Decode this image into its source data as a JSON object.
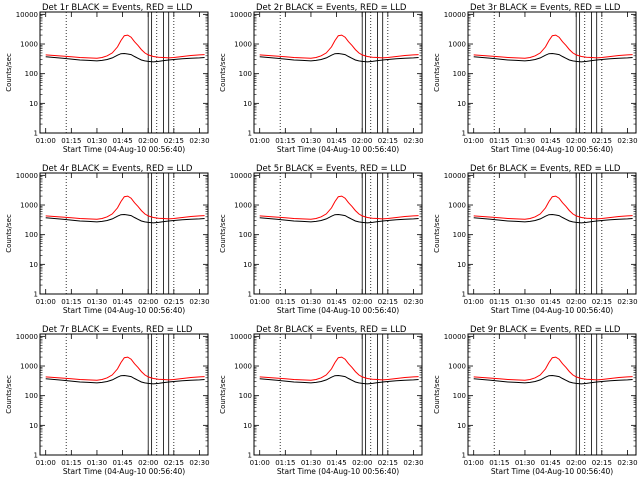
{
  "colors": {
    "events": "#000000",
    "lld": "#ff0000",
    "axes": "#000000",
    "background": "#ffffff"
  },
  "shared": {
    "ylabel": "Counts/sec",
    "xlabel": "Start Time (04-Aug-10 00:56:40)",
    "x_tick_labels": [
      "01:00",
      "01:15",
      "01:30",
      "01:45",
      "02:00",
      "02:15",
      "02:30"
    ],
    "y_tick_labels": [
      "1",
      "10",
      "100",
      "1000",
      "10000"
    ],
    "xlim": [
      "00:56:40",
      "02:35:00"
    ],
    "ylim": [
      1,
      12000
    ],
    "yscale": "log",
    "dotted_vertical_lines": [
      "01:12",
      "02:05",
      "02:15"
    ],
    "solid_vertical_lines": [
      "02:00",
      "02:02",
      "02:09",
      "02:12"
    ],
    "series": [
      {
        "name": "BLACK = Events",
        "color": "#000000",
        "x": [
          "01:00",
          "01:05",
          "01:10",
          "01:15",
          "01:20",
          "01:25",
          "01:30",
          "01:33",
          "01:36",
          "01:39",
          "01:42",
          "01:44",
          "01:46",
          "01:48",
          "01:50",
          "01:52",
          "01:54",
          "01:56",
          "01:58",
          "02:00",
          "02:03",
          "02:06",
          "02:09",
          "02:12",
          "02:15",
          "02:20",
          "02:25",
          "02:30",
          "02:33"
        ],
        "y": [
          370,
          350,
          330,
          310,
          290,
          280,
          270,
          280,
          300,
          340,
          420,
          470,
          480,
          460,
          440,
          380,
          330,
          290,
          270,
          260,
          250,
          260,
          275,
          290,
          300,
          320,
          330,
          340,
          350
        ]
      },
      {
        "name": "RED = LLD",
        "color": "#ff0000",
        "x": [
          "01:00",
          "01:05",
          "01:10",
          "01:15",
          "01:20",
          "01:25",
          "01:30",
          "01:33",
          "01:36",
          "01:39",
          "01:42",
          "01:44",
          "01:46",
          "01:48",
          "01:50",
          "01:52",
          "01:54",
          "01:56",
          "01:58",
          "02:00",
          "02:03",
          "02:06",
          "02:09",
          "02:12",
          "02:15",
          "02:20",
          "02:25",
          "02:30",
          "02:33"
        ],
        "y": [
          430,
          410,
          390,
          370,
          350,
          340,
          330,
          350,
          400,
          500,
          800,
          1300,
          1900,
          2000,
          1700,
          1200,
          900,
          650,
          500,
          430,
          380,
          360,
          350,
          340,
          350,
          380,
          410,
          430,
          440
        ]
      }
    ]
  },
  "chart_data": [
    {
      "type": "line",
      "title": "Det 1r BLACK = Events, RED = LLD",
      "xlabel": "Start Time (04-Aug-10 00:56:40)",
      "ylabel": "Counts/sec",
      "yscale": "log"
    },
    {
      "type": "line",
      "title": "Det 2r BLACK = Events, RED = LLD",
      "xlabel": "Start Time (04-Aug-10 00:56:40)",
      "ylabel": "Counts/sec",
      "yscale": "log"
    },
    {
      "type": "line",
      "title": "Det 3r BLACK = Events, RED = LLD",
      "xlabel": "Start Time (04-Aug-10 00:56:40)",
      "ylabel": "Counts/sec",
      "yscale": "log"
    },
    {
      "type": "line",
      "title": "Det 4r BLACK = Events, RED = LLD",
      "xlabel": "Start Time (04-Aug-10 00:56:40)",
      "ylabel": "Counts/sec",
      "yscale": "log"
    },
    {
      "type": "line",
      "title": "Det 5r BLACK = Events, RED = LLD",
      "xlabel": "Start Time (04-Aug-10 00:56:40)",
      "ylabel": "Counts/sec",
      "yscale": "log"
    },
    {
      "type": "line",
      "title": "Det 6r BLACK = Events, RED = LLD",
      "xlabel": "Start Time (04-Aug-10 00:56:40)",
      "ylabel": "Counts/sec",
      "yscale": "log"
    },
    {
      "type": "line",
      "title": "Det 7r BLACK = Events, RED = LLD",
      "xlabel": "Start Time (04-Aug-10 00:56:40)",
      "ylabel": "Counts/sec",
      "yscale": "log"
    },
    {
      "type": "line",
      "title": "Det 8r BLACK = Events, RED = LLD",
      "xlabel": "Start Time (04-Aug-10 00:56:40)",
      "ylabel": "Counts/sec",
      "yscale": "log"
    },
    {
      "type": "line",
      "title": "Det 9r BLACK = Events, RED = LLD",
      "xlabel": "Start Time (04-Aug-10 00:56:40)",
      "ylabel": "Counts/sec",
      "yscale": "log"
    }
  ]
}
